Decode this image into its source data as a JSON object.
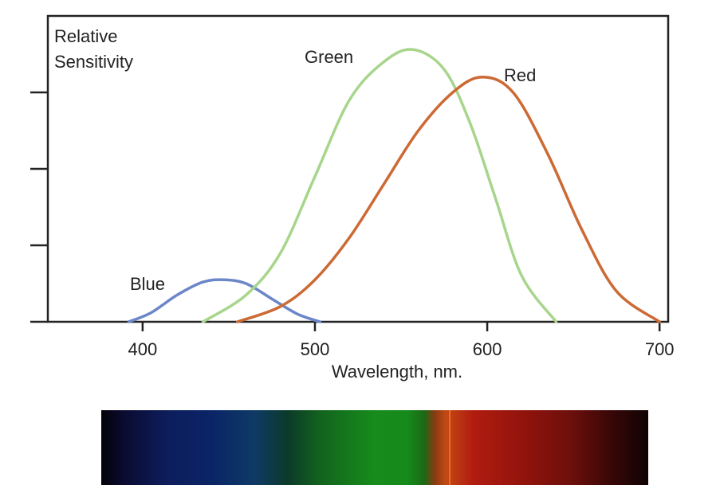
{
  "chart_data": {
    "type": "line",
    "title": "",
    "xlabel": "Wavelength, nm.",
    "ylabel": "Relative Sensitivity",
    "ylabel_lines": [
      "Relative",
      "Sensitivity"
    ],
    "xlim": [
      345,
      705
    ],
    "ylim": [
      0,
      4
    ],
    "xticks": [
      400,
      500,
      600,
      700
    ],
    "xtick_labels": [
      "400",
      "500",
      "600",
      "700"
    ],
    "yticks": [
      1,
      2,
      3
    ],
    "grid": false,
    "legend": "none (series labeled directly on curves)",
    "series": [
      {
        "name": "Blue",
        "color": "#6b86c9",
        "x": [
          392,
          405,
          420,
          435,
          447,
          460,
          475,
          490,
          503
        ],
        "y": [
          0.0,
          0.12,
          0.35,
          0.52,
          0.55,
          0.5,
          0.3,
          0.1,
          0.0
        ]
      },
      {
        "name": "Green",
        "color": "#a8d58c",
        "x": [
          435,
          460,
          480,
          500,
          520,
          540,
          557,
          575,
          590,
          605,
          620,
          640
        ],
        "y": [
          0.0,
          0.35,
          0.9,
          1.9,
          2.9,
          3.4,
          3.56,
          3.3,
          2.6,
          1.6,
          0.6,
          0.0
        ]
      },
      {
        "name": "Red",
        "color": "#cc6a35",
        "x": [
          455,
          480,
          500,
          520,
          540,
          560,
          580,
          597,
          615,
          635,
          655,
          675,
          700
        ],
        "y": [
          0.0,
          0.2,
          0.55,
          1.1,
          1.8,
          2.5,
          3.0,
          3.2,
          3.0,
          2.2,
          1.2,
          0.4,
          0.0
        ]
      }
    ]
  }
}
